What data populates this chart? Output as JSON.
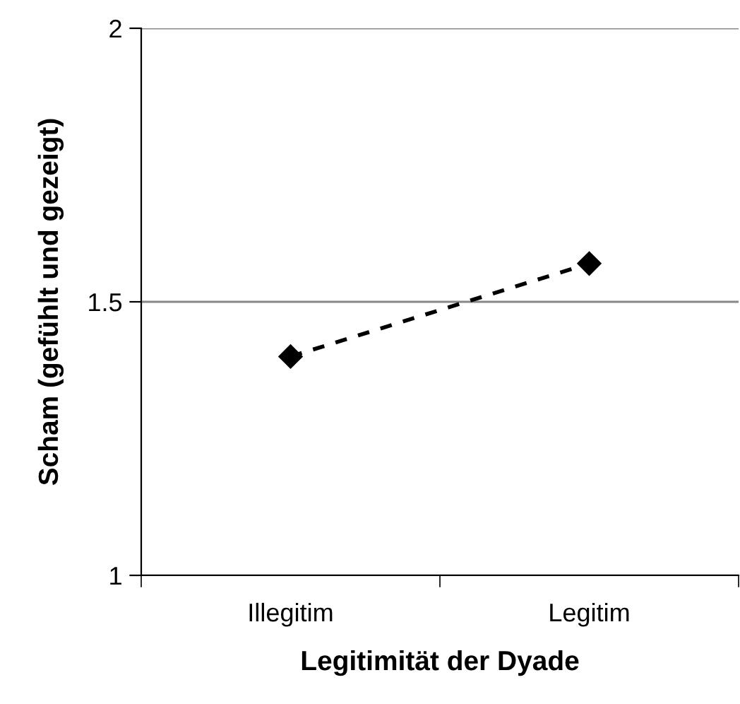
{
  "chart_data": {
    "type": "line",
    "xlabel": "Legitimität der Dyade",
    "ylabel": "Scham (gefühlt und gezeigt)",
    "categories": [
      "Illegitim",
      "Legitim"
    ],
    "series": [
      {
        "color": "#000000",
        "values": [
          1.4,
          1.57
        ]
      }
    ],
    "ylim": [
      1,
      2
    ],
    "yticks": [
      1,
      1.5,
      2
    ],
    "grid": "y",
    "marker": "diamond",
    "line_style": "dashed"
  }
}
